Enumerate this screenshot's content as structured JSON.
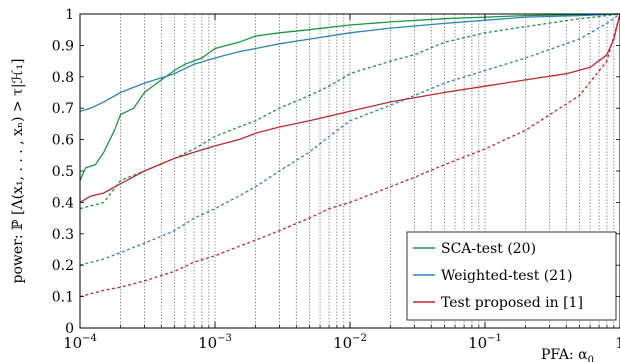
{
  "chart_data": {
    "type": "line",
    "xlabel": "PFA: α",
    "xlabel_sub": "0",
    "ylabel": "power: ℙ [Λ(x₁, . . . , xₙ) > τ|ℋ₁]",
    "xscale": "log",
    "xlim": [
      0.0001,
      1
    ],
    "ylim": [
      0,
      1
    ],
    "x_ticks": [
      {
        "value": 0.0001,
        "base": "10",
        "exp": "−4"
      },
      {
        "value": 0.001,
        "base": "10",
        "exp": "−3"
      },
      {
        "value": 0.01,
        "base": "10",
        "exp": "−2"
      },
      {
        "value": 0.1,
        "base": "10",
        "exp": "−1"
      },
      {
        "value": 1,
        "base": "1",
        "exp": ""
      }
    ],
    "y_ticks": [
      0,
      0.1,
      0.2,
      0.3,
      0.4,
      0.5,
      0.6,
      0.7,
      0.8,
      0.9,
      1
    ],
    "y_tick_labels": [
      "0",
      "0.1",
      "0.2",
      "0.3",
      "0.4",
      "0.5",
      "0.6",
      "0.7",
      "0.8",
      "0.9",
      "1"
    ],
    "grid": "vertical-dotted",
    "legend_position": "bottom-right",
    "series": [
      {
        "name": "SCA-test (20)",
        "color": "#1a9641",
        "dash": "solid",
        "points": [
          [
            0.0001,
            0.47
          ],
          [
            0.00011,
            0.51
          ],
          [
            0.00013,
            0.52
          ],
          [
            0.00015,
            0.56
          ],
          [
            0.00018,
            0.63
          ],
          [
            0.0002,
            0.68
          ],
          [
            0.00025,
            0.7
          ],
          [
            0.0003,
            0.75
          ],
          [
            0.0004,
            0.79
          ],
          [
            0.0005,
            0.82
          ],
          [
            0.0006,
            0.84
          ],
          [
            0.0008,
            0.86
          ],
          [
            0.001,
            0.89
          ],
          [
            0.0015,
            0.91
          ],
          [
            0.002,
            0.93
          ],
          [
            0.003,
            0.94
          ],
          [
            0.005,
            0.95
          ],
          [
            0.01,
            0.965
          ],
          [
            0.02,
            0.975
          ],
          [
            0.05,
            0.985
          ],
          [
            0.1,
            0.99
          ],
          [
            0.2,
            0.995
          ],
          [
            0.5,
            0.998
          ],
          [
            1,
            1
          ]
        ]
      },
      {
        "name": "SCA-test (20) (dashed)",
        "color": "#1a9641",
        "dash": "dashed",
        "points": [
          [
            0.0001,
            0.38
          ],
          [
            0.00015,
            0.4
          ],
          [
            0.0002,
            0.47
          ],
          [
            0.0003,
            0.5
          ],
          [
            0.0005,
            0.54
          ],
          [
            0.0007,
            0.57
          ],
          [
            0.001,
            0.61
          ],
          [
            0.0015,
            0.64
          ],
          [
            0.002,
            0.66
          ],
          [
            0.003,
            0.7
          ],
          [
            0.005,
            0.74
          ],
          [
            0.007,
            0.77
          ],
          [
            0.01,
            0.81
          ],
          [
            0.02,
            0.85
          ],
          [
            0.03,
            0.87
          ],
          [
            0.05,
            0.91
          ],
          [
            0.1,
            0.94
          ],
          [
            0.2,
            0.96
          ],
          [
            0.5,
            0.985
          ],
          [
            0.8,
            0.995
          ],
          [
            1,
            1
          ]
        ]
      },
      {
        "name": "Weighted-test (21)",
        "color": "#2b83ba",
        "dash": "solid",
        "points": [
          [
            0.0001,
            0.69
          ],
          [
            0.00012,
            0.7
          ],
          [
            0.00015,
            0.72
          ],
          [
            0.0002,
            0.75
          ],
          [
            0.0003,
            0.78
          ],
          [
            0.0005,
            0.81
          ],
          [
            0.0007,
            0.84
          ],
          [
            0.001,
            0.86
          ],
          [
            0.0015,
            0.88
          ],
          [
            0.002,
            0.89
          ],
          [
            0.003,
            0.905
          ],
          [
            0.005,
            0.92
          ],
          [
            0.01,
            0.94
          ],
          [
            0.02,
            0.955
          ],
          [
            0.05,
            0.97
          ],
          [
            0.1,
            0.98
          ],
          [
            0.2,
            0.99
          ],
          [
            0.5,
            0.995
          ],
          [
            1,
            1
          ]
        ]
      },
      {
        "name": "Weighted-test (21) (dashed)",
        "color": "#2b83ba",
        "dash": "dashed",
        "points": [
          [
            0.0001,
            0.2
          ],
          [
            0.00015,
            0.22
          ],
          [
            0.0002,
            0.24
          ],
          [
            0.0003,
            0.27
          ],
          [
            0.0005,
            0.31
          ],
          [
            0.0007,
            0.35
          ],
          [
            0.001,
            0.38
          ],
          [
            0.0015,
            0.42
          ],
          [
            0.002,
            0.45
          ],
          [
            0.003,
            0.5
          ],
          [
            0.005,
            0.56
          ],
          [
            0.007,
            0.61
          ],
          [
            0.01,
            0.66
          ],
          [
            0.02,
            0.71
          ],
          [
            0.03,
            0.74
          ],
          [
            0.05,
            0.78
          ],
          [
            0.1,
            0.82
          ],
          [
            0.2,
            0.86
          ],
          [
            0.5,
            0.92
          ],
          [
            0.8,
            0.97
          ],
          [
            1,
            1
          ]
        ]
      },
      {
        "name": "Test proposed in [1]",
        "color": "#c0282d",
        "dash": "solid",
        "points": [
          [
            0.0001,
            0.4
          ],
          [
            0.00012,
            0.42
          ],
          [
            0.00015,
            0.43
          ],
          [
            0.0002,
            0.46
          ],
          [
            0.0003,
            0.5
          ],
          [
            0.0005,
            0.54
          ],
          [
            0.0007,
            0.56
          ],
          [
            0.001,
            0.58
          ],
          [
            0.0015,
            0.6
          ],
          [
            0.002,
            0.62
          ],
          [
            0.003,
            0.64
          ],
          [
            0.005,
            0.66
          ],
          [
            0.01,
            0.69
          ],
          [
            0.02,
            0.72
          ],
          [
            0.05,
            0.75
          ],
          [
            0.1,
            0.77
          ],
          [
            0.2,
            0.79
          ],
          [
            0.4,
            0.81
          ],
          [
            0.6,
            0.83
          ],
          [
            0.8,
            0.87
          ],
          [
            0.9,
            0.92
          ],
          [
            1,
            1
          ]
        ]
      },
      {
        "name": "Test proposed in [1] (dashed)",
        "color": "#c0282d",
        "dash": "dashed",
        "points": [
          [
            0.0001,
            0.1
          ],
          [
            0.00015,
            0.12
          ],
          [
            0.0002,
            0.13
          ],
          [
            0.0003,
            0.15
          ],
          [
            0.0005,
            0.18
          ],
          [
            0.0007,
            0.21
          ],
          [
            0.001,
            0.23
          ],
          [
            0.0015,
            0.26
          ],
          [
            0.002,
            0.28
          ],
          [
            0.003,
            0.31
          ],
          [
            0.005,
            0.35
          ],
          [
            0.007,
            0.38
          ],
          [
            0.01,
            0.4
          ],
          [
            0.02,
            0.45
          ],
          [
            0.03,
            0.48
          ],
          [
            0.05,
            0.52
          ],
          [
            0.1,
            0.57
          ],
          [
            0.2,
            0.63
          ],
          [
            0.5,
            0.74
          ],
          [
            0.8,
            0.85
          ],
          [
            1,
            1
          ]
        ]
      }
    ],
    "legend": [
      {
        "label": "SCA-test (20)",
        "color": "#1a9641"
      },
      {
        "label": "Weighted-test (21)",
        "color": "#2b83ba"
      },
      {
        "label": "Test proposed in [1]",
        "color": "#c0282d"
      }
    ]
  }
}
